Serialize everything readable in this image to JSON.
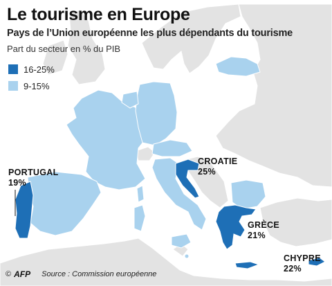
{
  "title": "Le tourisme en Europe",
  "subtitle": "Pays de l’Union européenne les plus dépendants du tourisme",
  "caption": "Part du secteur en % du PIB",
  "legend": [
    {
      "label": "16-25%",
      "color": "#1e6fb6"
    },
    {
      "label": "9-15%",
      "color": "#a9d2ee"
    }
  ],
  "colors": {
    "sea": "#ffffff",
    "non_eu_land": "#e3e3e3",
    "border": "#ffffff",
    "high": "#1e6fb6",
    "medium": "#a9d2ee"
  },
  "countries": [
    {
      "name": "Portugal",
      "label": "PORTUGAL",
      "value": "19%",
      "category": "16-25%"
    },
    {
      "name": "Croatie",
      "label": "CROATIE",
      "value": "25%",
      "category": "16-25%"
    },
    {
      "name": "Grèce",
      "label": "GRÈCE",
      "value": "21%",
      "category": "16-25%"
    },
    {
      "name": "Chypre",
      "label": "CHYPRE",
      "value": "22%",
      "category": "16-25%"
    }
  ],
  "footer": {
    "copyright": "©",
    "logo": "AFP",
    "source": "Source : Commission européenne"
  }
}
